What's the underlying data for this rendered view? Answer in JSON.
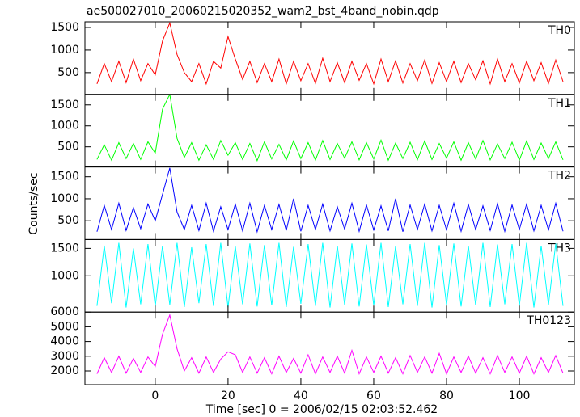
{
  "chart_data": [
    {
      "type": "line",
      "title": "ae500027010_20060215020352_wam2_bst_4band_nobin.qdp",
      "x": [
        -16,
        -14,
        -12,
        -10,
        -8,
        -6,
        -4,
        -2,
        0,
        2,
        4,
        6,
        8,
        10,
        12,
        14,
        16,
        18,
        20,
        22,
        24,
        26,
        28,
        30,
        32,
        34,
        36,
        38,
        40,
        42,
        44,
        46,
        48,
        50,
        52,
        54,
        56,
        58,
        60,
        62,
        64,
        66,
        68,
        70,
        72,
        74,
        76,
        78,
        80,
        82,
        84,
        86,
        88,
        90,
        92,
        94,
        96,
        98,
        100,
        102,
        104,
        106,
        108,
        110,
        112
      ],
      "series": [
        {
          "name": "TH0",
          "color": "#ff0000",
          "values": [
            250,
            700,
            300,
            750,
            280,
            800,
            320,
            700,
            450,
            1200,
            1600,
            900,
            500,
            300,
            700,
            250,
            750,
            600,
            1300,
            800,
            350,
            750,
            280,
            700,
            300,
            800,
            250,
            750,
            320,
            700,
            260,
            820,
            300,
            720,
            280,
            750,
            330,
            700,
            250,
            800,
            300,
            760,
            270,
            700,
            320,
            780,
            260,
            720,
            300,
            750,
            280,
            700,
            340,
            760,
            250,
            800,
            300,
            700,
            270,
            750,
            320,
            720,
            260,
            780,
            300
          ]
        }
      ],
      "xlim": [
        -19.3,
        115.1
      ],
      "xticks": [
        0,
        20,
        40,
        60,
        80,
        100
      ],
      "ylim": [
        18,
        1625
      ],
      "yticks": [
        500,
        1000,
        1500
      ]
    },
    {
      "type": "line",
      "x": [
        -16,
        -14,
        -12,
        -10,
        -8,
        -6,
        -4,
        -2,
        0,
        2,
        4,
        6,
        8,
        10,
        12,
        14,
        16,
        18,
        20,
        22,
        24,
        26,
        28,
        30,
        32,
        34,
        36,
        38,
        40,
        42,
        44,
        46,
        48,
        50,
        52,
        54,
        56,
        58,
        60,
        62,
        64,
        66,
        68,
        70,
        72,
        74,
        76,
        78,
        80,
        82,
        84,
        86,
        88,
        90,
        92,
        94,
        96,
        98,
        100,
        102,
        104,
        106,
        108,
        110,
        112
      ],
      "series": [
        {
          "name": "TH1",
          "color": "#00ff00",
          "values": [
            200,
            550,
            180,
            600,
            220,
            580,
            200,
            620,
            350,
            1400,
            1750,
            700,
            250,
            600,
            180,
            550,
            200,
            650,
            300,
            600,
            200,
            580,
            170,
            620,
            210,
            560,
            190,
            640,
            220,
            600,
            180,
            650,
            200,
            580,
            230,
            620,
            190,
            600,
            210,
            660,
            180,
            590,
            220,
            610,
            190,
            640,
            200,
            580,
            230,
            620,
            180,
            600,
            210,
            650,
            190,
            570,
            220,
            610,
            180,
            640,
            200,
            590,
            220,
            620,
            190
          ]
        }
      ],
      "xlim": [
        -19.3,
        115.1
      ],
      "xticks": [
        0,
        20,
        40,
        60,
        80,
        100
      ],
      "ylim": [
        20,
        1750
      ],
      "yticks": [
        500,
        1000,
        1500
      ]
    },
    {
      "type": "line",
      "y_label": "Counts/sec",
      "x": [
        -16,
        -14,
        -12,
        -10,
        -8,
        -6,
        -4,
        -2,
        0,
        2,
        4,
        6,
        8,
        10,
        12,
        14,
        16,
        18,
        20,
        22,
        24,
        26,
        28,
        30,
        32,
        34,
        36,
        38,
        40,
        42,
        44,
        46,
        48,
        50,
        52,
        54,
        56,
        58,
        60,
        62,
        64,
        66,
        68,
        70,
        72,
        74,
        76,
        78,
        80,
        82,
        84,
        86,
        88,
        90,
        92,
        94,
        96,
        98,
        100,
        102,
        104,
        106,
        108,
        110,
        112
      ],
      "series": [
        {
          "name": "TH2",
          "color": "#0000ff",
          "values": [
            250,
            850,
            300,
            900,
            280,
            800,
            320,
            880,
            500,
            1100,
            1700,
            700,
            300,
            850,
            280,
            900,
            260,
            820,
            300,
            880,
            270,
            900,
            250,
            850,
            300,
            870,
            280,
            1000,
            260,
            850,
            300,
            880,
            270,
            820,
            310,
            900,
            260,
            860,
            290,
            840,
            270,
            1000,
            250,
            860,
            300,
            880,
            270,
            850,
            290,
            900,
            260,
            870,
            300,
            840,
            280,
            890,
            260,
            860,
            300,
            880,
            270,
            850,
            290,
            900,
            260
          ]
        }
      ],
      "xlim": [
        -19.3,
        115.1
      ],
      "xticks": [
        0,
        20,
        40,
        60,
        80,
        100
      ],
      "ylim": [
        74,
        1722
      ],
      "yticks": [
        500,
        1000,
        1500
      ]
    },
    {
      "type": "line",
      "x": [
        -16,
        -14,
        -12,
        -10,
        -8,
        -6,
        -4,
        -2,
        0,
        2,
        4,
        6,
        8,
        10,
        12,
        14,
        16,
        18,
        20,
        22,
        24,
        26,
        28,
        30,
        32,
        34,
        36,
        38,
        40,
        42,
        44,
        46,
        48,
        50,
        52,
        54,
        56,
        58,
        60,
        62,
        64,
        66,
        68,
        70,
        72,
        74,
        76,
        78,
        80,
        82,
        84,
        86,
        88,
        90,
        92,
        94,
        96,
        98,
        100,
        102,
        104,
        106,
        108,
        110,
        112
      ],
      "series": [
        {
          "name": "TH3",
          "color": "#00ffff",
          "values": [
            450,
            1550,
            500,
            1600,
            420,
            1500,
            480,
            1580,
            440,
            1550,
            470,
            1600,
            430,
            1520,
            500,
            1580,
            450,
            1600,
            420,
            1540,
            480,
            1590,
            440,
            1560,
            460,
            1600,
            430,
            1530,
            490,
            1580,
            450,
            1600,
            420,
            1550,
            470,
            1590,
            440,
            1570,
            460,
            1600,
            430,
            1540,
            480,
            1580,
            450,
            1600,
            420,
            1560,
            470,
            1590,
            440,
            1550,
            460,
            1600,
            430,
            1570,
            480,
            1580,
            450,
            1600,
            420,
            1550,
            470,
            1590,
            450
          ]
        }
      ],
      "xlim": [
        -19.3,
        115.1
      ],
      "xticks": [
        0,
        20,
        40,
        60,
        80,
        100
      ],
      "ylim": [
        338,
        1662
      ],
      "yticks": [
        1000,
        1500
      ]
    },
    {
      "type": "line",
      "x_label": "Time [sec] 0 = 2006/02/15 02:03:52.462",
      "x": [
        -16,
        -14,
        -12,
        -10,
        -8,
        -6,
        -4,
        -2,
        0,
        2,
        4,
        6,
        8,
        10,
        12,
        14,
        16,
        18,
        20,
        22,
        24,
        26,
        28,
        30,
        32,
        34,
        36,
        38,
        40,
        42,
        44,
        46,
        48,
        50,
        52,
        54,
        56,
        58,
        60,
        62,
        64,
        66,
        68,
        70,
        72,
        74,
        76,
        78,
        80,
        82,
        84,
        86,
        88,
        90,
        92,
        94,
        96,
        98,
        100,
        102,
        104,
        106,
        108,
        110,
        112
      ],
      "series": [
        {
          "name": "TH0123",
          "color": "#ff00ff",
          "values": [
            1800,
            2900,
            1900,
            3000,
            1850,
            2850,
            1900,
            2950,
            2300,
            4500,
            5800,
            3500,
            2000,
            2900,
            1850,
            2950,
            1900,
            2800,
            3300,
            3100,
            1900,
            2950,
            1850,
            2900,
            1800,
            3000,
            1900,
            2850,
            1850,
            3100,
            1800,
            2950,
            1900,
            3000,
            1850,
            3400,
            1800,
            2950,
            1900,
            3000,
            1850,
            2900,
            1800,
            3050,
            1900,
            2950,
            1850,
            3200,
            1800,
            2950,
            1900,
            3000,
            1850,
            2900,
            1800,
            3050,
            1900,
            2950,
            1850,
            3000,
            1800,
            2900,
            1900,
            3050,
            1850
          ]
        }
      ],
      "xlim": [
        -19.3,
        115.1
      ],
      "xticks": [
        0,
        20,
        40,
        60,
        80,
        100
      ],
      "ylim": [
        1066,
        6000
      ],
      "yticks": [
        2000,
        3000,
        4000,
        5000,
        6000
      ],
      "show_x_labels": true
    }
  ]
}
